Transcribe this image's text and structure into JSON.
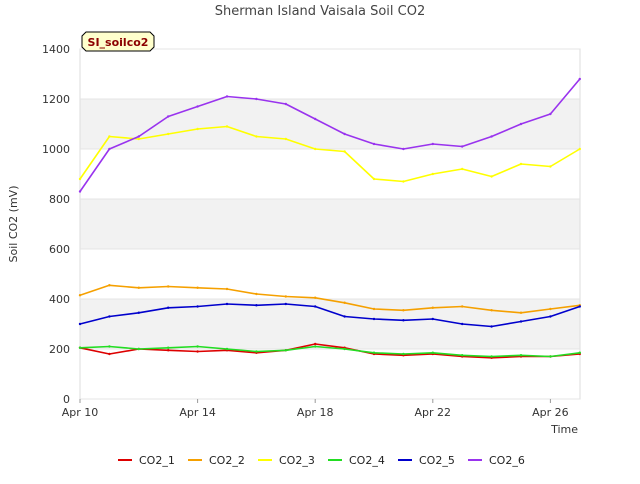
{
  "chart_data": {
    "type": "line",
    "title": "Sherman Island Vaisala Soil CO2",
    "badge": "SI_soilco2",
    "xlabel": "Time",
    "ylabel": "Soil CO2 (mV)",
    "ylim": [
      0,
      1400
    ],
    "yticks": [
      0,
      200,
      400,
      600,
      800,
      1000,
      1200,
      1400
    ],
    "xlim": [
      "2023-04-10",
      "2023-04-27"
    ],
    "xticks": [
      {
        "value": "2023-04-10",
        "label": "Apr 10"
      },
      {
        "value": "2023-04-14",
        "label": "Apr 14"
      },
      {
        "value": "2023-04-18",
        "label": "Apr 18"
      },
      {
        "value": "2023-04-22",
        "label": "Apr 22"
      },
      {
        "value": "2023-04-26",
        "label": "Apr 26"
      }
    ],
    "grid": "alternating horizontal bands",
    "legend_position": "bottom",
    "x": [
      "2023-04-10",
      "2023-04-11",
      "2023-04-12",
      "2023-04-13",
      "2023-04-14",
      "2023-04-15",
      "2023-04-16",
      "2023-04-17",
      "2023-04-18",
      "2023-04-19",
      "2023-04-20",
      "2023-04-21",
      "2023-04-22",
      "2023-04-23",
      "2023-04-24",
      "2023-04-25",
      "2023-04-26",
      "2023-04-27"
    ],
    "series": [
      {
        "name": "CO2_1",
        "color": "#dd0000",
        "values": [
          205,
          180,
          200,
          195,
          190,
          195,
          185,
          195,
          220,
          205,
          180,
          175,
          180,
          170,
          165,
          170,
          170,
          180
        ]
      },
      {
        "name": "CO2_2",
        "color": "#f5a000",
        "values": [
          415,
          455,
          445,
          450,
          445,
          440,
          420,
          410,
          405,
          385,
          360,
          355,
          365,
          370,
          355,
          345,
          360,
          375
        ]
      },
      {
        "name": "CO2_3",
        "color": "#ffff00",
        "values": [
          880,
          1050,
          1040,
          1060,
          1080,
          1090,
          1050,
          1040,
          1000,
          990,
          880,
          870,
          900,
          920,
          890,
          940,
          930,
          1000
        ]
      },
      {
        "name": "CO2_4",
        "color": "#22dd22",
        "values": [
          205,
          210,
          200,
          205,
          210,
          200,
          190,
          195,
          210,
          200,
          185,
          180,
          185,
          175,
          170,
          175,
          170,
          185
        ]
      },
      {
        "name": "CO2_5",
        "color": "#0000cc",
        "values": [
          300,
          330,
          345,
          365,
          370,
          380,
          375,
          380,
          370,
          330,
          320,
          315,
          320,
          300,
          290,
          310,
          330,
          370
        ]
      },
      {
        "name": "CO2_6",
        "color": "#9933ee",
        "values": [
          830,
          1000,
          1050,
          1130,
          1170,
          1210,
          1200,
          1180,
          1120,
          1060,
          1020,
          1000,
          1020,
          1010,
          1050,
          1100,
          1140,
          1280
        ]
      }
    ]
  }
}
